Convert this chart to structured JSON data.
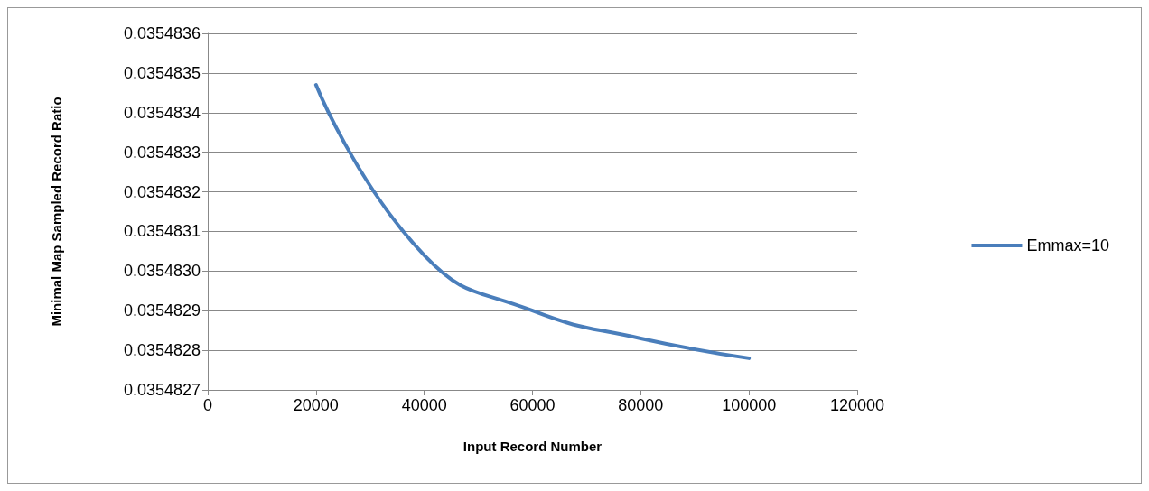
{
  "chart_data": {
    "type": "line",
    "xlabel": "Input Record Number",
    "ylabel": "Minimal Map Sampled Record Ratio",
    "x": [
      20000,
      40000,
      60000,
      80000,
      100000
    ],
    "series": [
      {
        "name": "Emmax=10",
        "color": "#4a7ebb",
        "values": [
          0.03548347,
          0.03548304,
          0.0354829,
          0.03548283,
          0.03548278
        ]
      }
    ],
    "xlim": [
      0,
      120000
    ],
    "xticks": [
      0,
      20000,
      40000,
      60000,
      80000,
      100000,
      120000
    ],
    "ylim": [
      0.0354827,
      0.0354836
    ],
    "yticks": [
      0.0354827,
      0.0354828,
      0.0354829,
      {
        "value": 0.035483,
        "label": "0.0354830"
      },
      0.0354831,
      0.0354832,
      0.0354833,
      0.0354834,
      0.0354835,
      0.0354836
    ],
    "grid": "y",
    "legend": "right",
    "marker": "none",
    "line_style": "solid"
  }
}
